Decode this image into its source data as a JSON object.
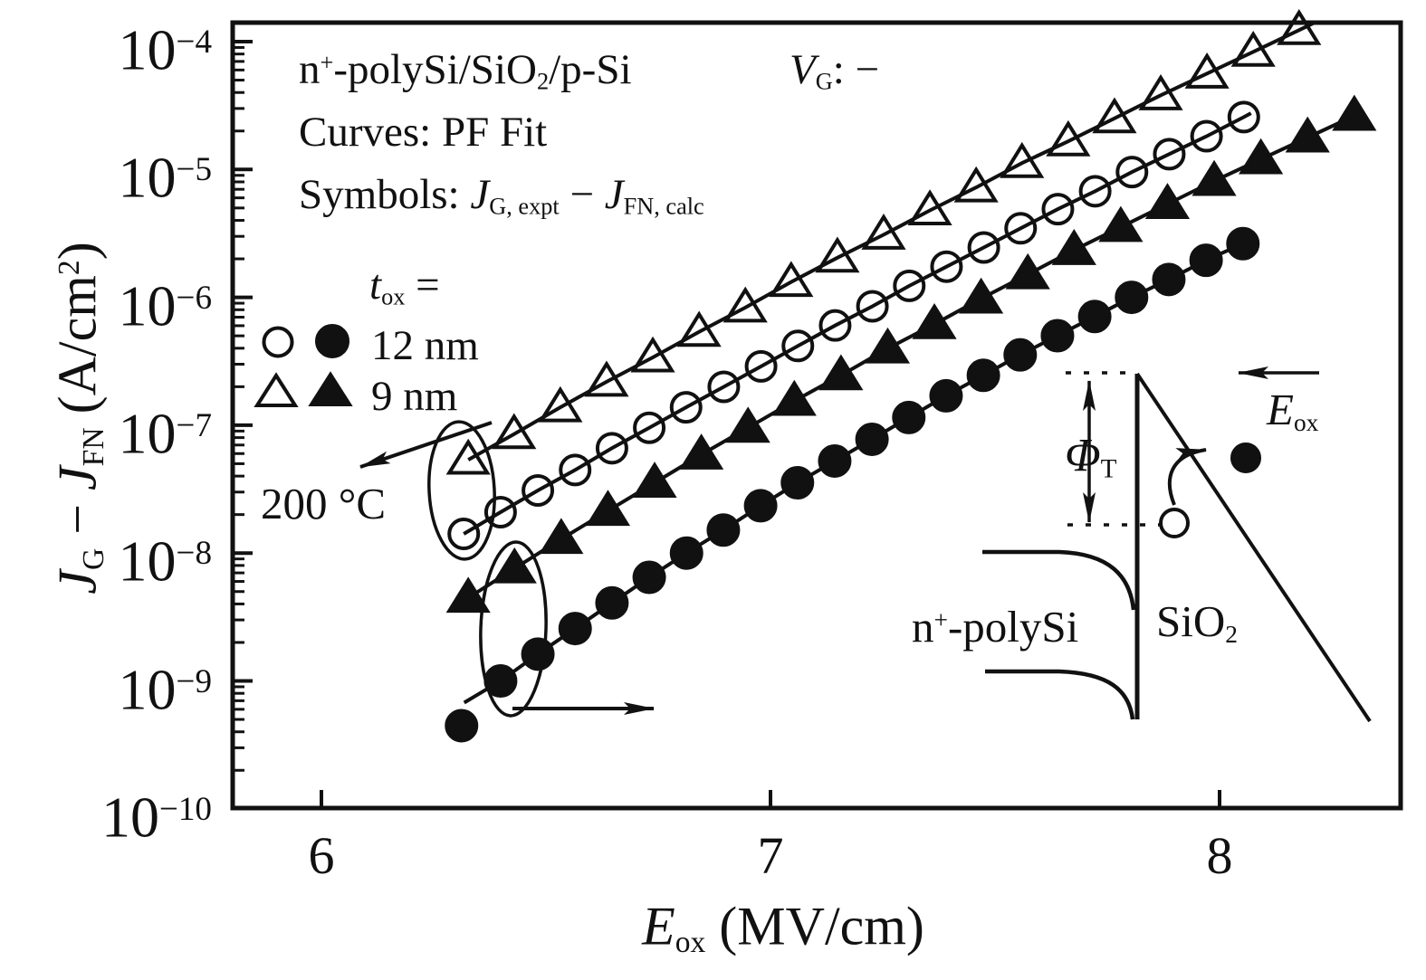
{
  "header": {
    "line1": {
      "n": "n",
      "plus": "+",
      "mid": "-polySi/SiO",
      "two": "2",
      "tail": "/p-Si"
    },
    "vg": {
      "v": "V",
      "g": "G",
      "tail": ": −"
    },
    "line2": "Curves: PF Fit",
    "line3": {
      "lead": "Symbols: ",
      "j1": "J",
      "j1s": "G, expt",
      "minus": " − ",
      "j2": "J",
      "j2s": "FN, calc"
    }
  },
  "legend": {
    "t": "t",
    "ts": "ox",
    "eq": " =",
    "row1": "12 nm",
    "row2": "9 nm",
    "temp": "200 °C"
  },
  "xaxis": {
    "e": "E",
    "es": "ox",
    "unit": " (MV/cm)"
  },
  "yaxis": {
    "j1": "J",
    "j1s": "G",
    "minus": " − ",
    "j2": "J",
    "j2s": "FN",
    "u1": " (A/cm",
    "u2": "2",
    "u3": ")",
    "base": "10"
  },
  "inset": {
    "phi": "Φ",
    "phis": "T",
    "e": "E",
    "es": "ox",
    "poly_n": "n",
    "poly_plus": "+",
    "poly_tail": "-polySi",
    "sio": "SiO",
    "sios": "2"
  },
  "chart_data": {
    "type": "scatter",
    "title": "n+-polySi/SiO2/p-Si, VG negative, Curves: PF Fit, Symbols: JG,expt − JFN,calc",
    "xlabel": "E_ox (MV/cm)",
    "ylabel": "J_G − J_FN (A/cm2)",
    "x_range": [
      5.8,
      8.4
    ],
    "y_log_range": [
      -10,
      -3.85
    ],
    "x_ticks": [
      {
        "label": "6",
        "value": 6
      },
      {
        "label": "7",
        "value": 7
      },
      {
        "label": "8",
        "value": 8
      }
    ],
    "y_ticks": [
      {
        "exp": "−4",
        "log": -4
      },
      {
        "exp": "−5",
        "log": -5
      },
      {
        "exp": "−6",
        "log": -6
      },
      {
        "exp": "−7",
        "log": -7
      },
      {
        "exp": "−8",
        "log": -8
      },
      {
        "exp": "−9",
        "log": -9
      },
      {
        "exp": "−10",
        "log": -10
      }
    ],
    "grid": false,
    "legend_position": "upper-left",
    "annotations": [
      "t_ox =",
      "12 nm",
      "9 nm",
      "200 °C (open symbols)"
    ],
    "series": [
      {
        "name": "t_ox = 9 nm, 200 °C (PF fit + data)",
        "marker": "triangle",
        "fill": "open",
        "color": "#111111",
        "points": [
          [
            6.327,
            -7.27
          ],
          [
            6.429,
            -7.07
          ],
          [
            6.532,
            -6.86
          ],
          [
            6.635,
            -6.66
          ],
          [
            6.738,
            -6.47
          ],
          [
            6.841,
            -6.27
          ],
          [
            6.944,
            -6.08
          ],
          [
            7.046,
            -5.88
          ],
          [
            7.149,
            -5.69
          ],
          [
            7.252,
            -5.51
          ],
          [
            7.355,
            -5.32
          ],
          [
            7.458,
            -5.14
          ],
          [
            7.56,
            -4.95
          ],
          [
            7.663,
            -4.78
          ],
          [
            7.766,
            -4.6
          ],
          [
            7.869,
            -4.42
          ],
          [
            7.972,
            -4.25
          ],
          [
            8.075,
            -4.08
          ],
          [
            8.177,
            -3.91
          ]
        ],
        "line_ext_end": [
          8.212,
          -3.85
        ]
      },
      {
        "name": "t_ox = 12 nm, 200 °C (PF fit + data)",
        "marker": "circle",
        "fill": "open",
        "color": "#111111",
        "points": [
          [
            6.317,
            -7.85
          ],
          [
            6.399,
            -7.68
          ],
          [
            6.482,
            -7.51
          ],
          [
            6.565,
            -7.35
          ],
          [
            6.647,
            -7.18
          ],
          [
            6.73,
            -7.02
          ],
          [
            6.812,
            -6.86
          ],
          [
            6.896,
            -6.7
          ],
          [
            6.979,
            -6.54
          ],
          [
            7.061,
            -6.38
          ],
          [
            7.144,
            -6.22
          ],
          [
            7.227,
            -6.07
          ],
          [
            7.309,
            -5.91
          ],
          [
            7.392,
            -5.76
          ],
          [
            7.475,
            -5.61
          ],
          [
            7.557,
            -5.46
          ],
          [
            7.64,
            -5.31
          ],
          [
            7.723,
            -5.17
          ],
          [
            7.805,
            -5.02
          ],
          [
            7.888,
            -4.88
          ],
          [
            7.971,
            -4.74
          ],
          [
            8.054,
            -4.59
          ]
        ],
        "line_ext_end": [
          8.07,
          -4.56
        ]
      },
      {
        "name": "t_ox = 9 nm (PF fit + data, filled)",
        "marker": "triangle",
        "fill": "solid",
        "color": "#111111",
        "points": [
          [
            6.327,
            -8.35
          ],
          [
            6.43,
            -8.12
          ],
          [
            6.534,
            -7.89
          ],
          [
            6.638,
            -7.67
          ],
          [
            6.742,
            -7.45
          ],
          [
            6.846,
            -7.23
          ],
          [
            6.95,
            -7.02
          ],
          [
            7.053,
            -6.81
          ],
          [
            7.157,
            -6.61
          ],
          [
            7.261,
            -6.4
          ],
          [
            7.365,
            -6.21
          ],
          [
            7.469,
            -6.01
          ],
          [
            7.573,
            -5.82
          ],
          [
            7.676,
            -5.63
          ],
          [
            7.78,
            -5.45
          ],
          [
            7.884,
            -5.27
          ],
          [
            7.988,
            -5.09
          ],
          [
            8.092,
            -4.92
          ],
          [
            8.196,
            -4.75
          ],
          [
            8.3,
            -4.58
          ]
        ],
        "line_ext_start": [
          6.286,
          -8.44
        ]
      },
      {
        "name": "t_ox = 12 nm (PF fit + data, filled)",
        "marker": "circle",
        "fill": "solid",
        "color": "#111111",
        "outlier": [
          6.312,
          -9.35
        ],
        "points": [
          [
            6.399,
            -9.0
          ],
          [
            6.482,
            -8.79
          ],
          [
            6.565,
            -8.59
          ],
          [
            6.647,
            -8.39
          ],
          [
            6.73,
            -8.19
          ],
          [
            6.813,
            -8.0
          ],
          [
            6.895,
            -7.82
          ],
          [
            6.978,
            -7.63
          ],
          [
            7.06,
            -7.45
          ],
          [
            7.143,
            -7.28
          ],
          [
            7.226,
            -7.11
          ],
          [
            7.308,
            -6.94
          ],
          [
            7.391,
            -6.77
          ],
          [
            7.474,
            -6.61
          ],
          [
            7.556,
            -6.45
          ],
          [
            7.639,
            -6.3
          ],
          [
            7.722,
            -6.15
          ],
          [
            7.804,
            -6.0
          ],
          [
            7.887,
            -5.86
          ],
          [
            7.97,
            -5.71
          ],
          [
            8.052,
            -5.58
          ]
        ],
        "line_ext_start": [
          6.318,
          -9.17
        ]
      }
    ]
  }
}
